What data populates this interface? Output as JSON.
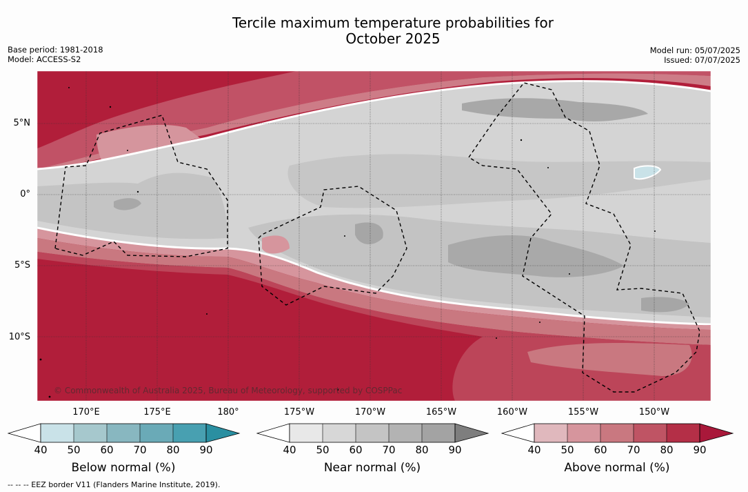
{
  "title_line1": "Tercile maximum temperature probabilities for",
  "title_line2": "October 2025",
  "meta_left": {
    "base_period": "Base period: 1981-2018",
    "model": "Model: ACCESS-S2"
  },
  "meta_right": {
    "model_run": "Model run: 05/07/2025",
    "issued": "Issued: 07/07/2025"
  },
  "lat_labels": [
    "5°N",
    "0°",
    "5°S",
    "10°S"
  ],
  "lon_labels": [
    "170°E",
    "175°E",
    "180°",
    "175°W",
    "170°W",
    "165°W",
    "160°W",
    "155°W",
    "150°W"
  ],
  "credit": "© Commonwealth of Australia 2025, Bureau of Meteorology, supported by COSPPac",
  "colorbars": [
    {
      "title": "Below normal (%)",
      "ticks": [
        "40",
        "50",
        "60",
        "70",
        "80",
        "90"
      ],
      "colors": [
        "#ffffff",
        "#c9e2e8",
        "#a6c8cd",
        "#88b7c0",
        "#6aaab7",
        "#48a0b1",
        "#2a8fa1"
      ]
    },
    {
      "title": "Near normal (%)",
      "ticks": [
        "40",
        "50",
        "60",
        "70",
        "80",
        "90"
      ],
      "colors": [
        "#ffffff",
        "#e8e8e8",
        "#d7d7d7",
        "#c4c4c4",
        "#b3b3b3",
        "#a3a3a3",
        "#7e7e7e"
      ]
    },
    {
      "title": "Above normal (%)",
      "ticks": [
        "40",
        "50",
        "60",
        "70",
        "80",
        "90"
      ],
      "colors": [
        "#ffffff",
        "#e0b8bd",
        "#d6959d",
        "#c97880",
        "#bf5464",
        "#b42f47",
        "#a9183a"
      ]
    }
  ],
  "footnote": "--  --  -- EEZ border V11 (Flanders Marine Institute, 2019)."
}
